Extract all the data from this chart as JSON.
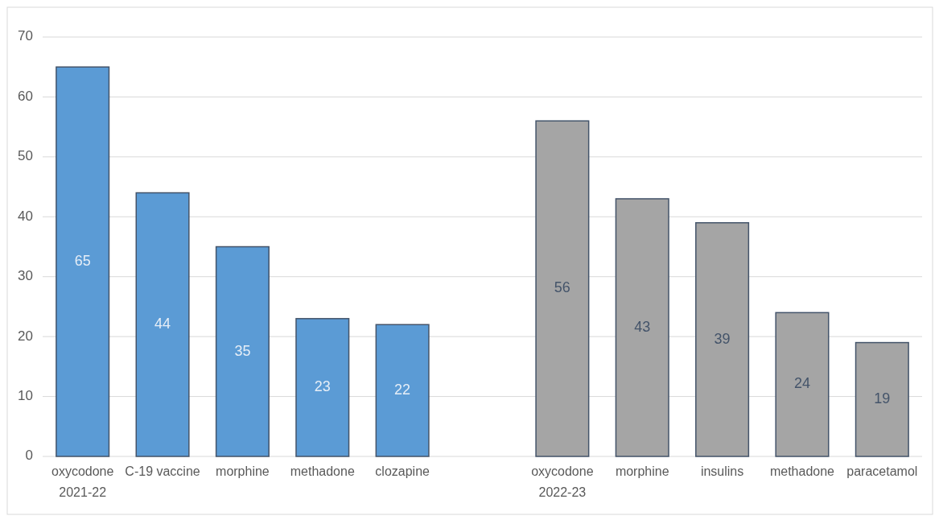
{
  "chart_data": {
    "type": "bar",
    "categories": [
      "oxycodone",
      "C-19 vaccine",
      "morphine",
      "methadone",
      "clozapine",
      null,
      "oxycodone",
      "morphine",
      "insulins",
      "methadone",
      "paracetamol"
    ],
    "values": [
      65,
      44,
      35,
      23,
      22,
      null,
      56,
      43,
      39,
      24,
      19
    ],
    "colors": [
      "#5b9bd5",
      "#5b9bd5",
      "#5b9bd5",
      "#5b9bd5",
      "#5b9bd5",
      null,
      "#a5a5a5",
      "#a5a5a5",
      "#a5a5a5",
      "#a5a5a5",
      "#a5a5a5"
    ],
    "ylim": [
      0,
      70
    ],
    "yticks": [
      0,
      10,
      20,
      30,
      40,
      50,
      60,
      70
    ],
    "grid": "y",
    "data_labels": true,
    "annotations": [
      "2021-22",
      "2022-23"
    ]
  }
}
